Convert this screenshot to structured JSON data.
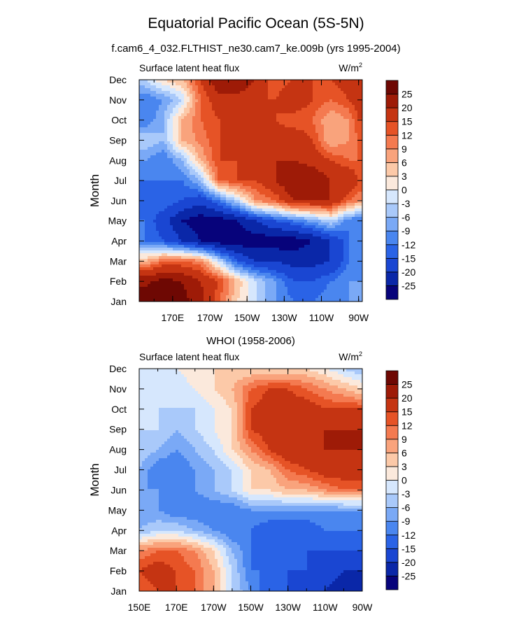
{
  "title": "Equatorial Pacific Ocean (5S-5N)",
  "subtitle": "f.cam6_4_032.FLTHIST_ne30.cam7_ke.009b (yrs 1995-2004)",
  "chart_data": [
    {
      "type": "heatmap",
      "title": "",
      "left_label": "Surface latent heat flux",
      "units_base": "W/m",
      "units_exp": "2",
      "ylabel": "Month",
      "xlabel": "",
      "x_ticks": [
        "170E",
        "170W",
        "150W",
        "130W",
        "110W",
        "90W"
      ],
      "x_tick_lon": [
        170,
        190,
        210,
        230,
        250,
        270
      ],
      "x_range_lon": [
        152,
        272
      ],
      "y_ticks": [
        "Jan",
        "Feb",
        "Mar",
        "Apr",
        "May",
        "Jun",
        "Jul",
        "Aug",
        "Sep",
        "Oct",
        "Nov",
        "Dec"
      ],
      "months": [
        "Jan",
        "Feb",
        "Mar",
        "Apr",
        "May",
        "Jun",
        "Jul",
        "Aug",
        "Sep",
        "Oct",
        "Nov",
        "Dec"
      ],
      "lon": [
        155,
        165,
        175,
        185,
        195,
        205,
        215,
        225,
        235,
        245,
        255,
        265,
        270
      ],
      "values": [
        [
          27,
          27,
          27,
          22,
          12,
          3,
          -3,
          -9,
          -12,
          -12,
          -10,
          -9,
          -9
        ],
        [
          24,
          27,
          25,
          20,
          15,
          5,
          -3,
          -9,
          -15,
          -15,
          -12,
          -9,
          -9
        ],
        [
          6,
          12,
          12,
          10,
          -3,
          -15,
          -20,
          -20,
          -22,
          -22,
          -20,
          -12,
          -10
        ],
        [
          -12,
          -15,
          -20,
          -25,
          -28,
          -28,
          -28,
          -28,
          -28,
          -25,
          -20,
          -12,
          -10
        ],
        [
          -12,
          -18,
          -25,
          -28,
          -28,
          -25,
          -20,
          -15,
          -12,
          -8,
          -3,
          -12,
          -12
        ],
        [
          -15,
          -12,
          -15,
          -18,
          -12,
          -3,
          9,
          12,
          20,
          20,
          20,
          12,
          9
        ],
        [
          -12,
          -12,
          -12,
          -6,
          12,
          15,
          15,
          20,
          25,
          25,
          20,
          20,
          15
        ],
        [
          -9,
          -12,
          -6,
          6,
          15,
          15,
          18,
          20,
          20,
          18,
          15,
          12,
          12
        ],
        [
          -3,
          -6,
          6,
          10,
          15,
          15,
          15,
          18,
          20,
          15,
          6,
          9,
          12
        ],
        [
          -12,
          -6,
          6,
          12,
          15,
          18,
          18,
          15,
          12,
          12,
          6,
          9,
          15
        ],
        [
          -12,
          -9,
          -3,
          12,
          18,
          18,
          15,
          15,
          20,
          15,
          12,
          15,
          18
        ],
        [
          -3,
          3,
          6,
          15,
          25,
          25,
          20,
          12,
          15,
          15,
          15,
          18,
          15
        ]
      ]
    },
    {
      "type": "heatmap",
      "title": "WHOI (1958-2006)",
      "left_label": "Surface latent heat flux",
      "units_base": "W/m",
      "units_exp": "2",
      "ylabel": "Month",
      "xlabel": "",
      "x_ticks": [
        "150E",
        "170E",
        "170W",
        "150W",
        "130W",
        "110W",
        "90W"
      ],
      "x_tick_lon": [
        150,
        170,
        190,
        210,
        230,
        250,
        270
      ],
      "x_range_lon": [
        150,
        270
      ],
      "y_ticks": [
        "Jan",
        "Feb",
        "Mar",
        "Apr",
        "May",
        "Jun",
        "Jul",
        "Aug",
        "Sep",
        "Oct",
        "Nov",
        "Dec"
      ],
      "months": [
        "Jan",
        "Feb",
        "Mar",
        "Apr",
        "May",
        "Jun",
        "Jul",
        "Aug",
        "Sep",
        "Oct",
        "Nov",
        "Dec"
      ],
      "lon": [
        150,
        160,
        170,
        180,
        190,
        200,
        210,
        220,
        230,
        240,
        250,
        260,
        270
      ],
      "values": [
        [
          12,
          15,
          15,
          12,
          6,
          -3,
          -9,
          -15,
          -15,
          -18,
          -20,
          -22,
          -22
        ],
        [
          15,
          18,
          15,
          12,
          6,
          -3,
          -12,
          -12,
          -15,
          -15,
          -18,
          -20,
          -20
        ],
        [
          9,
          12,
          12,
          9,
          3,
          -6,
          -12,
          -15,
          -15,
          -15,
          -15,
          -15,
          -15
        ],
        [
          -6,
          -3,
          -3,
          -6,
          -9,
          -12,
          -12,
          -15,
          -15,
          -15,
          -12,
          -12,
          -12
        ],
        [
          -9,
          -9,
          -12,
          -12,
          -12,
          -12,
          -9,
          -9,
          -9,
          -9,
          -9,
          -9,
          -9
        ],
        [
          -9,
          -9,
          -12,
          -9,
          -6,
          -3,
          3,
          3,
          6,
          6,
          9,
          12,
          12
        ],
        [
          -6,
          -12,
          -12,
          -9,
          -6,
          -3,
          3,
          6,
          12,
          15,
          18,
          18,
          18
        ],
        [
          -3,
          -6,
          -9,
          -6,
          -3,
          3,
          9,
          15,
          20,
          18,
          20,
          20,
          20
        ],
        [
          -3,
          -3,
          -6,
          -3,
          0,
          3,
          15,
          18,
          20,
          20,
          20,
          20,
          20
        ],
        [
          -3,
          -3,
          -3,
          -3,
          0,
          3,
          15,
          18,
          18,
          18,
          15,
          15,
          15
        ],
        [
          -3,
          -3,
          -3,
          0,
          3,
          6,
          12,
          15,
          15,
          12,
          9,
          6,
          3
        ],
        [
          0,
          0,
          0,
          3,
          3,
          3,
          3,
          3,
          3,
          3,
          0,
          -3,
          -6
        ]
      ]
    }
  ],
  "colorbar": {
    "labels": [
      "25",
      "20",
      "15",
      "12",
      "9",
      "6",
      "3",
      "0",
      "-3",
      "-6",
      "-9",
      "-12",
      "-15",
      "-20",
      "-25"
    ],
    "levels": [
      -25,
      -20,
      -15,
      -12,
      -9,
      -6,
      -3,
      0,
      3,
      6,
      9,
      12,
      15,
      20,
      25
    ],
    "colors": [
      "#07037b",
      "#0a27a8",
      "#1a46d2",
      "#2a63e6",
      "#4a86ef",
      "#7aa9f6",
      "#a9c9fa",
      "#d6e7fd",
      "#fbe9dc",
      "#fcc9a8",
      "#f9a37c",
      "#f47a50",
      "#e65326",
      "#c53412",
      "#9e1b07",
      "#6e0803"
    ]
  }
}
